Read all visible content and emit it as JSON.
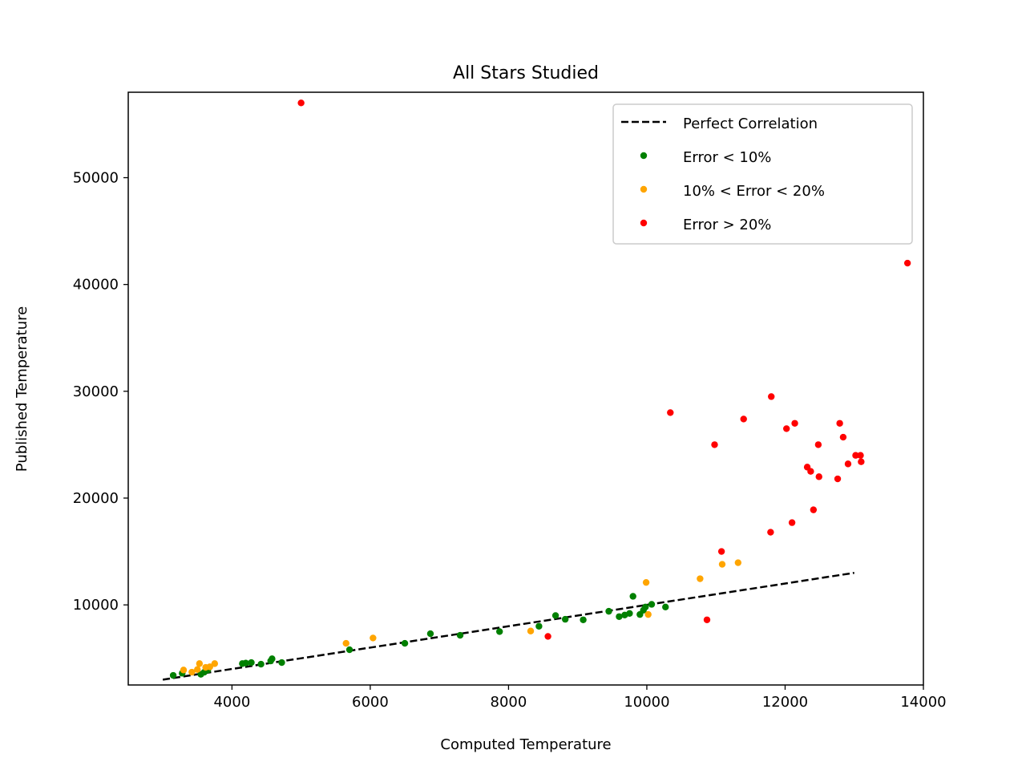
{
  "chart_data": {
    "type": "scatter",
    "title": "All Stars Studied",
    "xlabel": "Computed Temperature",
    "ylabel": "Published Temperature",
    "xlim": [
      2500,
      14000
    ],
    "ylim": [
      2500,
      58000
    ],
    "xticks": [
      4000,
      6000,
      8000,
      10000,
      12000,
      14000
    ],
    "yticks": [
      10000,
      20000,
      30000,
      40000,
      50000
    ],
    "grid": false,
    "legend_position": "top-right",
    "series": [
      {
        "name": "Perfect Correlation",
        "kind": "line",
        "style": "dashed",
        "color": "#000000",
        "points": [
          [
            3000,
            3000
          ],
          [
            13000,
            13000
          ]
        ]
      },
      {
        "name": "Error < 10%",
        "kind": "points",
        "color": "#008000",
        "points": [
          [
            3150,
            3400
          ],
          [
            3280,
            3600
          ],
          [
            3550,
            3500
          ],
          [
            3600,
            3700
          ],
          [
            3650,
            3900
          ],
          [
            4150,
            4500
          ],
          [
            4200,
            4550
          ],
          [
            4280,
            4600
          ],
          [
            4420,
            4450
          ],
          [
            4560,
            4750
          ],
          [
            4580,
            4950
          ],
          [
            4720,
            4600
          ],
          [
            5700,
            5800
          ],
          [
            6500,
            6400
          ],
          [
            6870,
            7300
          ],
          [
            7300,
            7150
          ],
          [
            7870,
            7500
          ],
          [
            8440,
            8000
          ],
          [
            8680,
            9000
          ],
          [
            8820,
            8650
          ],
          [
            9080,
            8600
          ],
          [
            9450,
            9400
          ],
          [
            9600,
            8900
          ],
          [
            9680,
            9050
          ],
          [
            9750,
            9200
          ],
          [
            9800,
            10800
          ],
          [
            9900,
            9100
          ],
          [
            9950,
            9500
          ],
          [
            9980,
            9800
          ],
          [
            10070,
            10050
          ],
          [
            10270,
            9800
          ]
        ]
      },
      {
        "name": "10% < Error < 20%",
        "kind": "points",
        "color": "#ffa500",
        "points": [
          [
            3300,
            3900
          ],
          [
            3420,
            3700
          ],
          [
            3500,
            3950
          ],
          [
            3530,
            4500
          ],
          [
            3620,
            4150
          ],
          [
            3680,
            4200
          ],
          [
            3750,
            4500
          ],
          [
            5650,
            6400
          ],
          [
            6040,
            6900
          ],
          [
            8320,
            7550
          ],
          [
            9990,
            12100
          ],
          [
            10020,
            9100
          ],
          [
            10770,
            12450
          ],
          [
            11090,
            13800
          ],
          [
            11320,
            13950
          ]
        ]
      },
      {
        "name": "Error > 20%",
        "kind": "points",
        "color": "#ff0000",
        "points": [
          [
            5000,
            57000
          ],
          [
            8570,
            7050
          ],
          [
            10340,
            28000
          ],
          [
            10870,
            8600
          ],
          [
            10980,
            25000
          ],
          [
            11080,
            15000
          ],
          [
            11400,
            27400
          ],
          [
            11790,
            16800
          ],
          [
            11800,
            29500
          ],
          [
            12020,
            26500
          ],
          [
            12100,
            17700
          ],
          [
            12140,
            27000
          ],
          [
            12320,
            22900
          ],
          [
            12370,
            22500
          ],
          [
            12410,
            18900
          ],
          [
            12480,
            25000
          ],
          [
            12490,
            22000
          ],
          [
            12760,
            21800
          ],
          [
            12790,
            27000
          ],
          [
            12840,
            25700
          ],
          [
            12910,
            23200
          ],
          [
            13020,
            24000
          ],
          [
            13090,
            24000
          ],
          [
            13100,
            23400
          ],
          [
            13770,
            42000
          ]
        ]
      }
    ]
  }
}
